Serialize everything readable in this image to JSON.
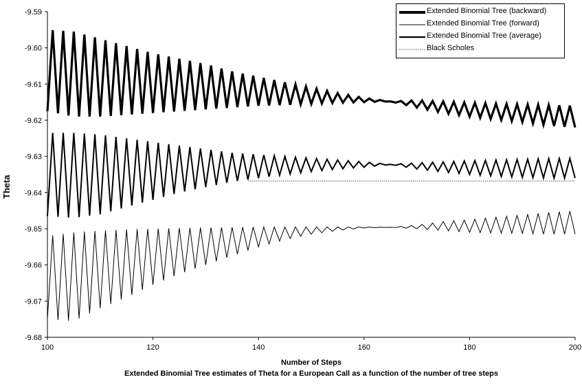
{
  "chart_data": {
    "type": "line",
    "title": "Extended Binomial Tree estimates of Theta for a European Call as a function of the number of tree steps",
    "xlabel": "Number of Steps",
    "ylabel": "Theta",
    "xlim": [
      100,
      200
    ],
    "ylim": [
      -9.68,
      -9.59
    ],
    "xticks": [
      "100",
      "120",
      "140",
      "160",
      "180",
      "200"
    ],
    "yticks": [
      "-9.59",
      "-9.60",
      "-9.61",
      "-9.62",
      "-9.63",
      "-9.64",
      "-9.65",
      "-9.66",
      "-9.67",
      "-9.68"
    ],
    "legend_position": "top-right",
    "grid": false,
    "series": [
      {
        "name": "Extended Binomial Tree (backward)",
        "style": "thick",
        "color": "#000000",
        "x": [
          100,
          105,
          110,
          115,
          120,
          125,
          130,
          135,
          140,
          145,
          150,
          155,
          160,
          165,
          170,
          175,
          180,
          185,
          190,
          195,
          200
        ],
        "upper": [
          -9.595,
          -9.5955,
          -9.5975,
          -9.5995,
          -9.6015,
          -9.603,
          -9.6045,
          -9.6065,
          -9.608,
          -9.6095,
          -9.611,
          -9.6125,
          -9.6138,
          -9.6148,
          -9.6145,
          -9.6148,
          -9.6151,
          -9.6154,
          -9.6156,
          -9.6158,
          -9.616
        ],
        "lower": [
          -9.6175,
          -9.619,
          -9.619,
          -9.6185,
          -9.618,
          -9.6175,
          -9.617,
          -9.6165,
          -9.616,
          -9.6158,
          -9.6155,
          -9.6152,
          -9.615,
          -9.6148,
          -9.6165,
          -9.618,
          -9.619,
          -9.6198,
          -9.6205,
          -9.6215,
          -9.622
        ]
      },
      {
        "name": "Extended Binomial Tree (forward)",
        "style": "thin",
        "color": "#000000",
        "x": [
          100,
          105,
          110,
          115,
          120,
          125,
          130,
          135,
          140,
          145,
          150,
          155,
          160,
          165,
          170,
          175,
          180,
          185,
          190,
          195,
          200
        ],
        "upper": [
          -9.652,
          -9.651,
          -9.6505,
          -9.6502,
          -9.65,
          -9.6498,
          -9.6497,
          -9.6496,
          -9.6495,
          -9.6495,
          -9.6495,
          -9.6495,
          -9.6495,
          -9.6496,
          -9.649,
          -9.648,
          -9.6475,
          -9.6468,
          -9.6462,
          -9.6455,
          -9.645
        ],
        "lower": [
          -9.675,
          -9.6755,
          -9.672,
          -9.669,
          -9.6655,
          -9.6625,
          -9.66,
          -9.6575,
          -9.655,
          -9.653,
          -9.6515,
          -9.6505,
          -9.6498,
          -9.6496,
          -9.65,
          -9.6505,
          -9.651,
          -9.6512,
          -9.6513,
          -9.6515,
          -9.6515
        ]
      },
      {
        "name": "Extended Binomial Tree (average)",
        "style": "medium",
        "color": "#000000",
        "x": [
          100,
          105,
          110,
          115,
          120,
          125,
          130,
          135,
          140,
          145,
          150,
          155,
          160,
          165,
          170,
          175,
          180,
          185,
          190,
          195,
          200
        ],
        "upper": [
          -9.6235,
          -9.6235,
          -9.624,
          -9.625,
          -9.626,
          -9.627,
          -9.628,
          -9.629,
          -9.6295,
          -9.63,
          -9.6305,
          -9.631,
          -9.6315,
          -9.6322,
          -9.6318,
          -9.6315,
          -9.6312,
          -9.631,
          -9.6308,
          -9.6306,
          -9.6305
        ],
        "lower": [
          -9.6465,
          -9.647,
          -9.646,
          -9.644,
          -9.642,
          -9.64,
          -9.6385,
          -9.637,
          -9.636,
          -9.635,
          -9.6342,
          -9.6335,
          -9.633,
          -9.6322,
          -9.6335,
          -9.6343,
          -9.635,
          -9.6355,
          -9.6358,
          -9.636,
          -9.636
        ]
      },
      {
        "name": "Black Scholes",
        "style": "dotted",
        "color": "#555555",
        "x": [
          138,
          200
        ],
        "values": [
          -9.6368,
          -9.6368
        ]
      }
    ]
  }
}
